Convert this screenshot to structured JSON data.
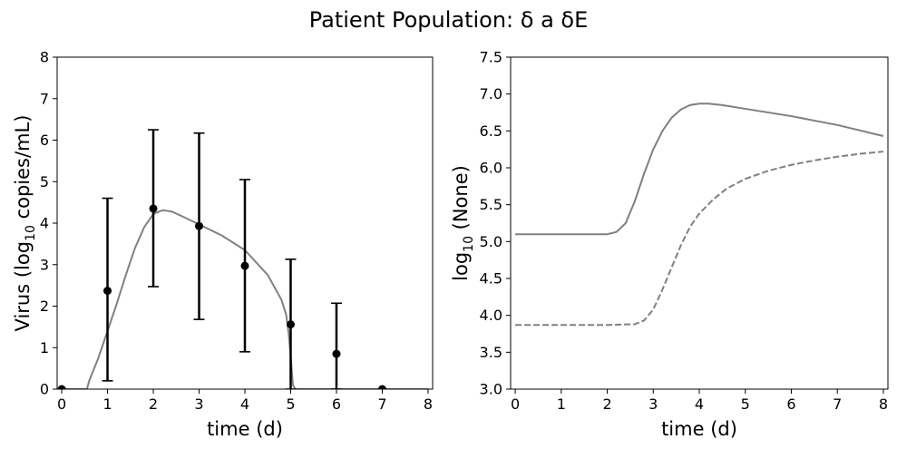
{
  "figure": {
    "title": "Patient Population: δ a δE"
  },
  "chart_data": [
    {
      "type": "line",
      "panel": "left",
      "xlabel": "time (d)",
      "ylabel_parts": [
        "Virus (log",
        "10",
        " copies/mL)"
      ],
      "xlim": [
        -0.1,
        8.1
      ],
      "ylim": [
        0,
        8
      ],
      "xticks": [
        0,
        1,
        2,
        3,
        4,
        5,
        6,
        7,
        8
      ],
      "yticks": [
        0,
        1,
        2,
        3,
        4,
        5,
        6,
        7,
        8
      ],
      "grid": false,
      "series": [
        {
          "kind": "model-curve",
          "color": "#808080",
          "style": "solid",
          "x": [
            0,
            0.55,
            0.6,
            0.8,
            1.0,
            1.2,
            1.4,
            1.6,
            1.8,
            2.0,
            2.2,
            2.4,
            2.6,
            3.0,
            3.5,
            4.0,
            4.5,
            4.8,
            4.9,
            4.95,
            5.0,
            5.05,
            5.1,
            6,
            7,
            8
          ],
          "y": [
            0,
            0,
            0.2,
            0.75,
            1.4,
            2.05,
            2.75,
            3.4,
            3.9,
            4.22,
            4.31,
            4.28,
            4.18,
            3.97,
            3.7,
            3.35,
            2.75,
            2.15,
            1.8,
            1.4,
            0.8,
            0.1,
            0,
            0,
            0,
            0
          ]
        },
        {
          "kind": "observed-mean-with-errorbars",
          "color": "#000000",
          "x": [
            0,
            1,
            2,
            3,
            4,
            5,
            6,
            7
          ],
          "y": [
            0,
            2.37,
            4.35,
            3.93,
            2.97,
            1.56,
            0.85,
            0
          ],
          "yerr_low": [
            0,
            0.2,
            2.47,
            1.68,
            0.9,
            0,
            0,
            0
          ],
          "yerr_high": [
            0,
            4.6,
            6.25,
            6.17,
            5.05,
            3.13,
            2.07,
            0
          ]
        }
      ]
    },
    {
      "type": "line",
      "panel": "right",
      "xlabel": "time (d)",
      "ylabel_parts": [
        "log",
        "10",
        " (None)"
      ],
      "xlim": [
        -0.1,
        8.1
      ],
      "ylim": [
        3.0,
        7.5
      ],
      "xticks": [
        0,
        1,
        2,
        3,
        4,
        5,
        6,
        7,
        8
      ],
      "yticks": [
        3.0,
        3.5,
        4.0,
        4.5,
        5.0,
        5.5,
        6.0,
        6.5,
        7.0,
        7.5
      ],
      "yticks_format": "1dp",
      "grid": false,
      "series": [
        {
          "kind": "solid-curve",
          "color": "#808080",
          "style": "solid",
          "x": [
            0,
            1,
            2,
            2.2,
            2.4,
            2.6,
            2.8,
            3.0,
            3.2,
            3.4,
            3.6,
            3.8,
            4.0,
            4.2,
            4.5,
            5,
            6,
            7,
            8
          ],
          "y": [
            5.1,
            5.1,
            5.1,
            5.13,
            5.25,
            5.55,
            5.92,
            6.25,
            6.5,
            6.68,
            6.79,
            6.85,
            6.87,
            6.87,
            6.85,
            6.8,
            6.7,
            6.58,
            6.43
          ]
        },
        {
          "kind": "dashed-curve",
          "color": "#808080",
          "style": "dashed",
          "x": [
            0,
            1,
            2,
            2.6,
            2.8,
            3.0,
            3.2,
            3.4,
            3.6,
            3.8,
            4.0,
            4.3,
            4.6,
            5,
            5.5,
            6,
            6.5,
            7,
            7.5,
            8
          ],
          "y": [
            3.87,
            3.87,
            3.87,
            3.88,
            3.93,
            4.08,
            4.35,
            4.65,
            4.95,
            5.2,
            5.38,
            5.57,
            5.72,
            5.85,
            5.96,
            6.04,
            6.1,
            6.15,
            6.19,
            6.22
          ]
        }
      ]
    }
  ]
}
